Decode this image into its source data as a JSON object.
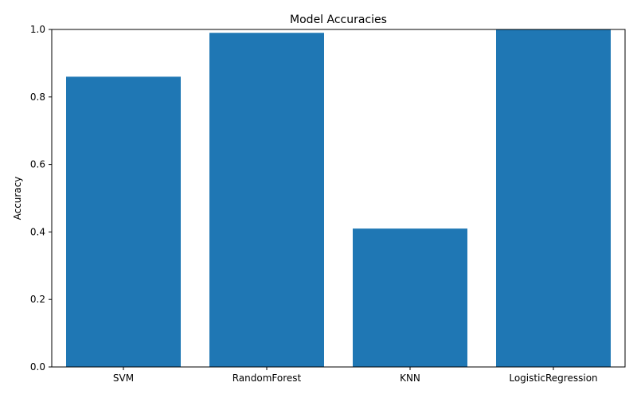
{
  "chart_data": {
    "type": "bar",
    "title": "Model Accuracies",
    "xlabel": "",
    "ylabel": "Accuracy",
    "categories": [
      "SVM",
      "RandomForest",
      "KNN",
      "LogisticRegression"
    ],
    "values": [
      0.86,
      0.99,
      0.41,
      1.0
    ],
    "ylim": [
      0,
      1.0
    ],
    "yticks": [
      "0.0",
      "0.2",
      "0.4",
      "0.6",
      "0.8",
      "1.0"
    ],
    "grid": false,
    "bar_color": "#1f77b4"
  }
}
